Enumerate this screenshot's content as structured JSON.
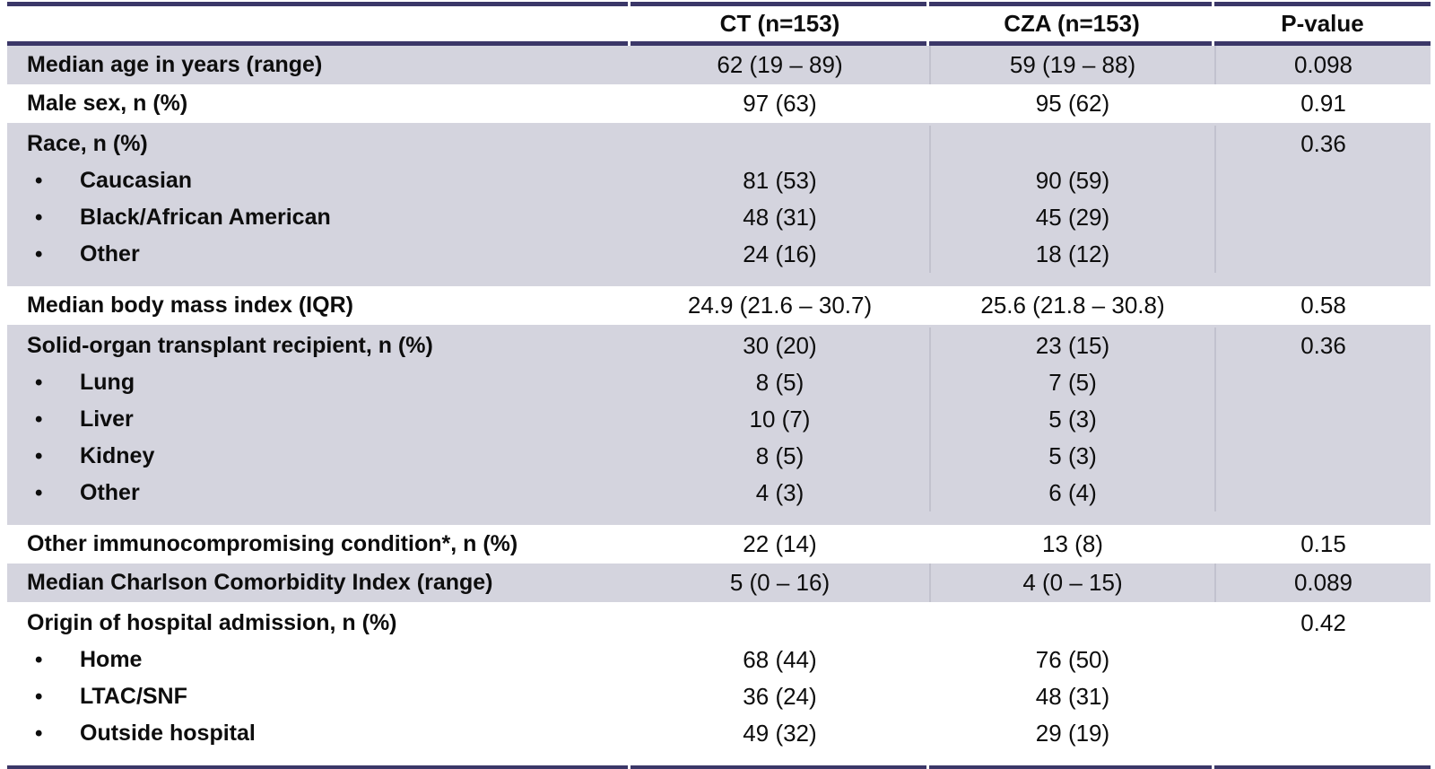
{
  "table": {
    "bullet_glyph": "•",
    "columns": [
      "",
      "CT (n=153)",
      "CZA (n=153)",
      "P-value"
    ],
    "rows": [
      {
        "shaded": true,
        "label": "Median age in years (range)",
        "ct": "62 (19 – 89)",
        "cza": "59 (19 – 88)",
        "p": "0.098"
      },
      {
        "shaded": false,
        "label": "Male sex, n (%)",
        "ct": "97 (63)",
        "cza": "95 (62)",
        "p": "0.91"
      },
      {
        "shaded": true,
        "p": "0.36",
        "lines": [
          {
            "label": "Race, n (%)",
            "bullet": false,
            "ct": "",
            "cza": ""
          },
          {
            "label": "Caucasian",
            "bullet": true,
            "ct": "81 (53)",
            "cza": "90 (59)"
          },
          {
            "label": "Black/African American",
            "bullet": true,
            "ct": "48 (31)",
            "cza": "45 (29)"
          },
          {
            "label": "Other",
            "bullet": true,
            "ct": "24 (16)",
            "cza": "18 (12)"
          }
        ]
      },
      {
        "shaded": false,
        "label": "Median body mass index (IQR)",
        "ct": "24.9 (21.6 – 30.7)",
        "cza": "25.6 (21.8 – 30.8)",
        "p": "0.58"
      },
      {
        "shaded": true,
        "p": "0.36",
        "lines": [
          {
            "label": "Solid-organ transplant recipient, n (%)",
            "bullet": false,
            "ct": "30 (20)",
            "cza": "23 (15)"
          },
          {
            "label": "Lung",
            "bullet": true,
            "ct": "8 (5)",
            "cza": "7 (5)"
          },
          {
            "label": "Liver",
            "bullet": true,
            "ct": "10 (7)",
            "cza": "5 (3)"
          },
          {
            "label": "Kidney",
            "bullet": true,
            "ct": "8 (5)",
            "cza": "5 (3)"
          },
          {
            "label": "Other",
            "bullet": true,
            "ct": "4 (3)",
            "cza": "6 (4)"
          }
        ]
      },
      {
        "shaded": false,
        "label": "Other immunocompromising condition*, n (%)",
        "ct": "22 (14)",
        "cza": "13 (8)",
        "p": "0.15"
      },
      {
        "shaded": true,
        "label": "Median Charlson Comorbidity Index (range)",
        "ct": "5 (0 – 16)",
        "cza": "4 (0 – 15)",
        "p": "0.089"
      },
      {
        "shaded": false,
        "p": "0.42",
        "lines": [
          {
            "label": "Origin of hospital admission, n (%)",
            "bullet": false,
            "ct": "",
            "cza": ""
          },
          {
            "label": "Home",
            "bullet": true,
            "ct": "68 (44)",
            "cza": "76 (50)"
          },
          {
            "label": "LTAC/SNF",
            "bullet": true,
            "ct": "36 (24)",
            "cza": "48 (31)"
          },
          {
            "label": "Outside hospital",
            "bullet": true,
            "ct": "49 (32)",
            "cza": "29 (19)"
          }
        ]
      }
    ]
  },
  "colors": {
    "rule_navy": "#3b3768",
    "row_shade": "#d4d4de",
    "column_divider": "#c2c2ce"
  }
}
